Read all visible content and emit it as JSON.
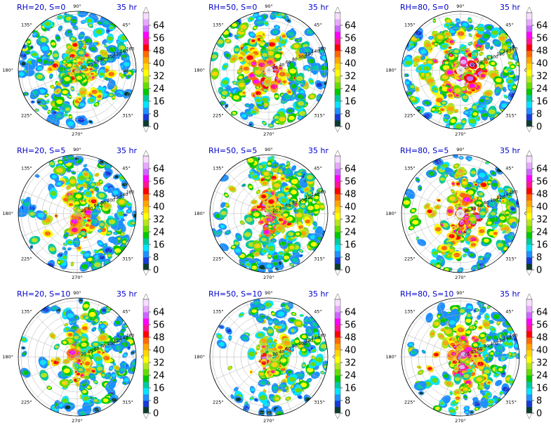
{
  "chart_data": {
    "type": "polar-contour-grid",
    "azimuth_labels": [
      "90°",
      "45°",
      "0°",
      "315°",
      "270°",
      "225°",
      "180°",
      "135°"
    ],
    "colorbar": {
      "ticks": [
        "0",
        "8",
        "16",
        "24",
        "32",
        "40",
        "48",
        "56",
        "64"
      ],
      "levels": [
        0,
        4,
        8,
        12,
        16,
        20,
        24,
        28,
        32,
        36,
        40,
        44,
        48,
        52,
        56,
        60,
        64,
        68
      ],
      "colors": [
        "#0b3d2e",
        "#173ad6",
        "#1e90ff",
        "#00e5ff",
        "#00c8a0",
        "#00c800",
        "#66dd00",
        "#b5e61d",
        "#ffff00",
        "#ffd700",
        "#ffa500",
        "#ff6a00",
        "#ff0000",
        "#ff1493",
        "#ff00ff",
        "#cc66ff",
        "#e6a8ff",
        "#f7ddff"
      ]
    },
    "radial_labels": [
      "20",
      "40",
      "60",
      "80",
      "100",
      "120",
      "140",
      "160"
    ],
    "panels": [
      {
        "title": "RH=20, S=0",
        "time": "35 hr",
        "intensity": 0.62,
        "coverage": 0.6,
        "spiral": 0.3,
        "shear_dir": 0
      },
      {
        "title": "RH=50, S=0",
        "time": "35 hr",
        "intensity": 0.72,
        "coverage": 0.78,
        "spiral": 0.9,
        "shear_dir": 0
      },
      {
        "title": "RH=80, S=0",
        "time": "35 hr",
        "intensity": 0.8,
        "coverage": 0.88,
        "spiral": 0.7,
        "shear_dir": 0
      },
      {
        "title": "RH=20, S=5",
        "time": "35 hr",
        "intensity": 0.62,
        "coverage": 0.5,
        "spiral": 0.3,
        "shear_dir": 1
      },
      {
        "title": "RH=50, S=5",
        "time": "35 hr",
        "intensity": 0.72,
        "coverage": 0.7,
        "spiral": 0.4,
        "shear_dir": 1
      },
      {
        "title": "RH=80, S=5",
        "time": "35 hr",
        "intensity": 0.78,
        "coverage": 0.82,
        "spiral": 0.8,
        "shear_dir": 1
      },
      {
        "title": "RH=20, S=10",
        "time": "35 hr",
        "intensity": 0.62,
        "coverage": 0.45,
        "spiral": 0.2,
        "shear_dir": 1
      },
      {
        "title": "RH=50, S=10",
        "time": "35 hr",
        "intensity": 0.62,
        "coverage": 0.42,
        "spiral": 0.1,
        "shear_dir": 1
      },
      {
        "title": "RH=80, S=10",
        "time": "35 hr",
        "intensity": 0.72,
        "coverage": 0.55,
        "spiral": 0.2,
        "shear_dir": 1
      }
    ]
  }
}
